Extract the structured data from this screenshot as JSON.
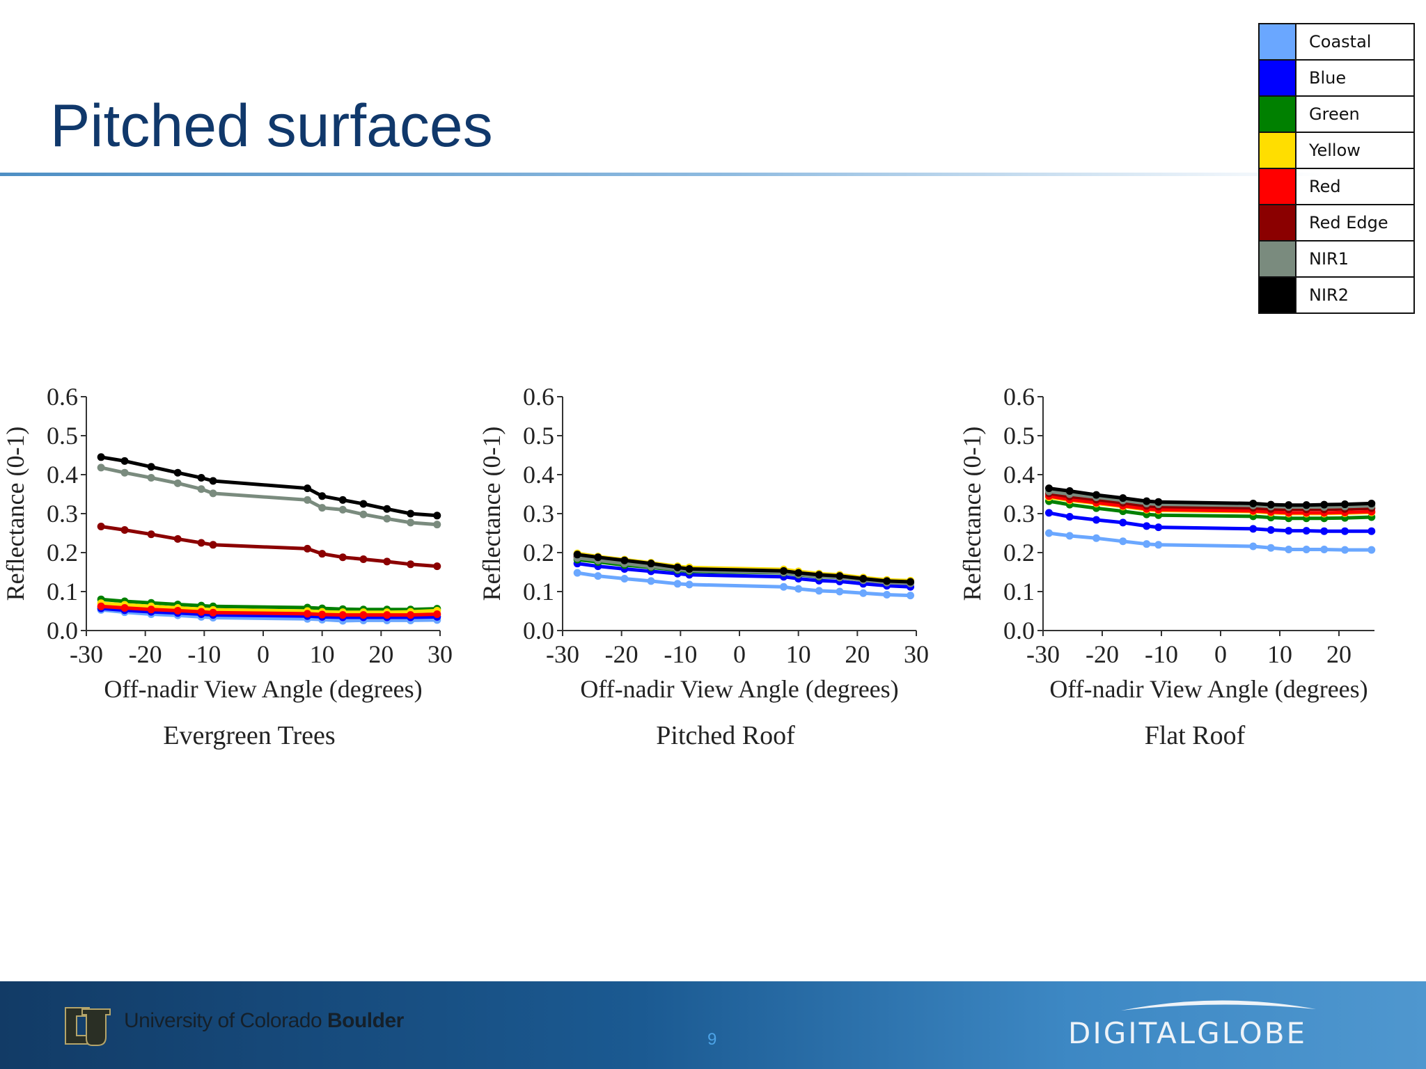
{
  "slide": {
    "title": "Pitched surfaces",
    "page_number": "9"
  },
  "legend": [
    {
      "label": "Coastal",
      "color": "#6aa7ff"
    },
    {
      "label": "Blue",
      "color": "#0000ff"
    },
    {
      "label": "Green",
      "color": "#008000"
    },
    {
      "label": "Yellow",
      "color": "#ffde00"
    },
    {
      "label": "Red",
      "color": "#ff0000"
    },
    {
      "label": "Red Edge",
      "color": "#8b0000"
    },
    {
      "label": "NIR1",
      "color": "#7a8b7e"
    },
    {
      "label": "NIR2",
      "color": "#000000"
    }
  ],
  "footer": {
    "university_name": "University of Colorado",
    "university_campus": "Boulder",
    "company_logo_text": "DIGITALGLOBE"
  },
  "chart_data": [
    {
      "type": "line",
      "title": "Evergreen Trees",
      "xlabel": "Off-nadir View Angle (degrees)",
      "ylabel": "Reflectance (0-1)",
      "xlim": [
        -30,
        30
      ],
      "ylim": [
        0,
        0.6
      ],
      "xticks": [
        -30,
        -20,
        -10,
        0,
        10,
        20,
        30
      ],
      "yticks": [
        0,
        0.1,
        0.2,
        0.3,
        0.4,
        0.5,
        0.6
      ],
      "x": [
        -27.5,
        -23.5,
        -19,
        -14.5,
        -10.5,
        -8.5,
        7.5,
        10,
        13.5,
        17,
        21,
        25,
        29.5
      ],
      "series": [
        {
          "name": "Coastal",
          "color": "#6aa7ff",
          "values": [
            0.053,
            0.047,
            0.042,
            0.039,
            0.035,
            0.033,
            0.03,
            0.028,
            0.025,
            0.026,
            0.026,
            0.026,
            0.027
          ]
        },
        {
          "name": "Blue",
          "color": "#0000ff",
          "values": [
            0.057,
            0.052,
            0.048,
            0.045,
            0.042,
            0.04,
            0.037,
            0.035,
            0.034,
            0.034,
            0.034,
            0.034,
            0.035
          ]
        },
        {
          "name": "Green",
          "color": "#008000",
          "values": [
            0.08,
            0.075,
            0.071,
            0.067,
            0.064,
            0.062,
            0.059,
            0.057,
            0.055,
            0.054,
            0.054,
            0.054,
            0.056
          ]
        },
        {
          "name": "Yellow",
          "color": "#ffde00",
          "values": [
            0.07,
            0.066,
            0.062,
            0.058,
            0.055,
            0.053,
            0.05,
            0.048,
            0.047,
            0.047,
            0.047,
            0.048,
            0.051
          ]
        },
        {
          "name": "Red",
          "color": "#ff0000",
          "values": [
            0.062,
            0.058,
            0.054,
            0.051,
            0.048,
            0.046,
            0.043,
            0.041,
            0.04,
            0.04,
            0.04,
            0.04,
            0.042
          ]
        },
        {
          "name": "Red Edge",
          "color": "#8b0000",
          "values": [
            0.267,
            0.258,
            0.247,
            0.235,
            0.225,
            0.22,
            0.21,
            0.197,
            0.188,
            0.183,
            0.177,
            0.17,
            0.165
          ]
        },
        {
          "name": "NIR1",
          "color": "#7a8b7e",
          "values": [
            0.418,
            0.405,
            0.392,
            0.378,
            0.363,
            0.352,
            0.335,
            0.315,
            0.31,
            0.298,
            0.287,
            0.277,
            0.272
          ]
        },
        {
          "name": "NIR2",
          "color": "#000000",
          "values": [
            0.445,
            0.435,
            0.42,
            0.405,
            0.392,
            0.384,
            0.365,
            0.345,
            0.335,
            0.325,
            0.312,
            0.3,
            0.295
          ]
        }
      ]
    },
    {
      "type": "line",
      "title": "Pitched Roof",
      "xlabel": "Off-nadir View Angle (degrees)",
      "ylabel": "Reflectance (0-1)",
      "xlim": [
        -30,
        30
      ],
      "ylim": [
        0,
        0.6
      ],
      "xticks": [
        -30,
        -20,
        -10,
        0,
        10,
        20,
        30
      ],
      "yticks": [
        0,
        0.1,
        0.2,
        0.3,
        0.4,
        0.5,
        0.6
      ],
      "x": [
        -27.5,
        -24,
        -19.5,
        -15,
        -10.5,
        -8.5,
        7.5,
        10,
        13.5,
        17,
        21,
        25,
        29
      ],
      "series": [
        {
          "name": "Coastal",
          "color": "#6aa7ff",
          "values": [
            0.148,
            0.14,
            0.133,
            0.127,
            0.12,
            0.118,
            0.112,
            0.107,
            0.102,
            0.1,
            0.096,
            0.092,
            0.09
          ]
        },
        {
          "name": "Blue",
          "color": "#0000ff",
          "values": [
            0.172,
            0.165,
            0.158,
            0.152,
            0.146,
            0.143,
            0.138,
            0.133,
            0.128,
            0.126,
            0.12,
            0.115,
            0.112
          ]
        },
        {
          "name": "Green",
          "color": "#008000",
          "values": [
            0.182,
            0.176,
            0.168,
            0.162,
            0.155,
            0.152,
            0.148,
            0.143,
            0.138,
            0.136,
            0.13,
            0.124,
            0.122
          ]
        },
        {
          "name": "Yellow",
          "color": "#ffde00",
          "values": [
            0.198,
            0.19,
            0.182,
            0.174,
            0.165,
            0.162,
            0.157,
            0.152,
            0.146,
            0.143,
            0.136,
            0.13,
            0.128
          ]
        },
        {
          "name": "Red",
          "color": "#ff0000",
          "values": [
            0.188,
            0.182,
            0.174,
            0.166,
            0.158,
            0.155,
            0.15,
            0.145,
            0.14,
            0.137,
            0.13,
            0.124,
            0.122
          ]
        },
        {
          "name": "Red Edge",
          "color": "#8b0000",
          "values": [
            0.19,
            0.184,
            0.176,
            0.168,
            0.16,
            0.156,
            0.151,
            0.146,
            0.141,
            0.138,
            0.131,
            0.125,
            0.123
          ]
        },
        {
          "name": "NIR1",
          "color": "#7a8b7e",
          "values": [
            0.186,
            0.18,
            0.172,
            0.164,
            0.157,
            0.154,
            0.149,
            0.144,
            0.139,
            0.136,
            0.129,
            0.123,
            0.121
          ]
        },
        {
          "name": "NIR2",
          "color": "#000000",
          "values": [
            0.195,
            0.188,
            0.18,
            0.172,
            0.162,
            0.158,
            0.153,
            0.148,
            0.143,
            0.14,
            0.133,
            0.127,
            0.125
          ]
        }
      ]
    },
    {
      "type": "line",
      "title": "Flat Roof",
      "xlabel": "Off-nadir View Angle (degrees)",
      "ylabel": "Reflectance (0-1)",
      "xlim": [
        -30,
        26
      ],
      "ylim": [
        0,
        0.6
      ],
      "xticks": [
        -30,
        -20,
        -10,
        0,
        10,
        20
      ],
      "yticks": [
        0,
        0.1,
        0.2,
        0.3,
        0.4,
        0.5,
        0.6
      ],
      "x": [
        -29,
        -25.5,
        -21,
        -16.5,
        -12.5,
        -10.5,
        5.5,
        8.5,
        11.5,
        14.5,
        17.5,
        21,
        25.5
      ],
      "series": [
        {
          "name": "Coastal",
          "color": "#6aa7ff",
          "values": [
            0.25,
            0.243,
            0.237,
            0.229,
            0.222,
            0.22,
            0.216,
            0.212,
            0.208,
            0.208,
            0.208,
            0.207,
            0.207
          ]
        },
        {
          "name": "Blue",
          "color": "#0000ff",
          "values": [
            0.302,
            0.292,
            0.284,
            0.277,
            0.268,
            0.265,
            0.261,
            0.258,
            0.256,
            0.256,
            0.255,
            0.255,
            0.255
          ]
        },
        {
          "name": "Green",
          "color": "#008000",
          "values": [
            0.332,
            0.323,
            0.314,
            0.306,
            0.298,
            0.296,
            0.293,
            0.29,
            0.288,
            0.288,
            0.288,
            0.289,
            0.291
          ]
        },
        {
          "name": "Yellow",
          "color": "#ffde00",
          "values": [
            0.342,
            0.334,
            0.326,
            0.318,
            0.31,
            0.308,
            0.305,
            0.302,
            0.3,
            0.3,
            0.3,
            0.301,
            0.303
          ]
        },
        {
          "name": "Red",
          "color": "#ff0000",
          "values": [
            0.345,
            0.336,
            0.328,
            0.32,
            0.312,
            0.31,
            0.307,
            0.304,
            0.302,
            0.302,
            0.302,
            0.303,
            0.305
          ]
        },
        {
          "name": "Red Edge",
          "color": "#8b0000",
          "values": [
            0.352,
            0.344,
            0.336,
            0.328,
            0.32,
            0.318,
            0.315,
            0.312,
            0.311,
            0.311,
            0.311,
            0.312,
            0.314
          ]
        },
        {
          "name": "NIR1",
          "color": "#7a8b7e",
          "values": [
            0.357,
            0.35,
            0.342,
            0.334,
            0.326,
            0.324,
            0.321,
            0.318,
            0.317,
            0.317,
            0.317,
            0.318,
            0.32
          ]
        },
        {
          "name": "NIR2",
          "color": "#000000",
          "values": [
            0.365,
            0.358,
            0.348,
            0.34,
            0.332,
            0.33,
            0.326,
            0.323,
            0.322,
            0.322,
            0.323,
            0.324,
            0.326
          ]
        }
      ]
    }
  ]
}
